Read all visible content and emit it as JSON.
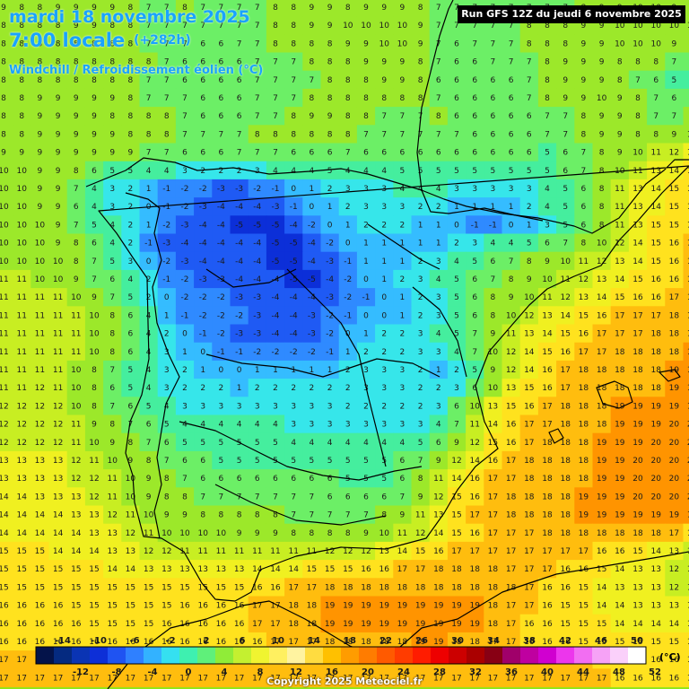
{
  "header": {
    "date_title": "mardi 18 novembre 2025",
    "time_title": "7:00 locale",
    "offset": "(+282h)",
    "parameter": "Windchill / Refroidissement éolien (°C)",
    "run_info": "Run GFS 12Z du jeudi 6 novembre 2025"
  },
  "legend": {
    "unit": "(°C)",
    "top_labels": [
      "-14",
      "-10",
      "-6",
      "-2",
      "2",
      "6",
      "10",
      "14",
      "18",
      "22",
      "26",
      "30",
      "34",
      "38",
      "42",
      "46",
      "50"
    ],
    "bottom_labels": [
      "-12",
      "-8",
      "-4",
      "0",
      "4",
      "8",
      "12",
      "16",
      "20",
      "24",
      "28",
      "32",
      "36",
      "40",
      "44",
      "48",
      "52"
    ],
    "colors": [
      "#04134a",
      "#052a80",
      "#0a34b4",
      "#0d2fd7",
      "#1f53f2",
      "#2f80ff",
      "#33b2ff",
      "#35e0f0",
      "#3ef0b0",
      "#5ff07a",
      "#90ec38",
      "#c4f030",
      "#f0f430",
      "#fff060",
      "#fff3a0",
      "#ffdc40",
      "#ffc000",
      "#ff9c00",
      "#ff7c00",
      "#ff5a00",
      "#ff3c00",
      "#ff1c00",
      "#ee0000",
      "#cc0000",
      "#aa0000",
      "#880014",
      "#a0006a",
      "#bf00a0",
      "#d000d0",
      "#ec36ec",
      "#f26ef2",
      "#f6a2f6",
      "#fad0fa",
      "#ffffff"
    ]
  },
  "map_data": {
    "color_stops": [
      {
        "v": -6,
        "c": "#0c2fd8"
      },
      {
        "v": -4,
        "c": "#1f5af4"
      },
      {
        "v": -2,
        "c": "#2f8aff"
      },
      {
        "v": 0,
        "c": "#35bcff"
      },
      {
        "v": 2,
        "c": "#36e6ea"
      },
      {
        "v": 4,
        "c": "#45ee9e"
      },
      {
        "v": 6,
        "c": "#6cef66"
      },
      {
        "v": 8,
        "c": "#9ce82a"
      },
      {
        "v": 11,
        "c": "#c8ee22"
      },
      {
        "v": 13,
        "c": "#f0f020"
      },
      {
        "v": 15,
        "c": "#ffe21e"
      },
      {
        "v": 17,
        "c": "#ffbd0e"
      },
      {
        "v": 19,
        "c": "#ff9400"
      },
      {
        "v": 21,
        "c": "#ff7a00"
      }
    ],
    "rows": [
      "9 8 8 9 9 9 9 8 7 7 8 7 7 7 7 8 8 9 9 8 9 9 9 8 7 7 7 7 7 7 7 7 8 9 9 10 10 9 9",
      "8 8 8 8 9 9 8 8 7 7 7 7 7 7 7 8 8 9 9 10 10 10 10 9 7 7 7 7 7 8 8 8 9 9 10 10 10 10 10",
      "8 8 8 8 8 8 8 8 7 7 7 6 6 7 7 8 8 8 8 9 9 10 10 9 7 6 7 7 7 8 8 8 9 9 10 10 10 9 9",
      "8 8 8 8 8 8 8 8 8 7 6 6 6 6 7 7 7 8 8 8 9 9 9 8 7 6 6 7 7 7 8 9 9 9 8 8 8 7 6",
      "8 8 8 8 8 8 8 8 7 7 6 6 6 6 7 7 7 7 8 8 8 9 9 8 6 6 6 6 6 7 8 9 9 9 8 7 6 5 5",
      "8 8 9 9 9 9 9 8 7 7 7 6 6 6 7 7 7 8 8 8 8 8 8 8 7 6 6 6 6 7 8 9 9 10 9 8 7 6 6",
      "8 8 9 9 9 9 8 8 8 8 7 6 6 6 7 7 8 9 9 8 8 7 7 7 8 6 6 6 6 6 7 7 8 9 9 8 7 7 8",
      "8 8 9 9 9 9 9 8 8 8 7 7 7 7 8 8 8 8 8 8 7 7 7 7 7 7 6 6 6 6 7 7 8 9 9 8 8 9 10",
      "9 9 9 9 9 9 9 9 7 7 6 6 6 7 7 7 6 6 6 7 6 6 6 6 6 6 6 6 6 6 5 6 7 8 9 10 11 12 13",
      "10 10 9 9 8 6 5 5 4 4 3 2 2 2 3 4 4 4 5 4 4 4 5 5 5 5 5 5 5 5 5 6 7 8 10 11 13 14 15",
      "10 10 9 9 7 4 3 2 1 -1 -2 -2 -3 -3 -2 -1 0 1 2 3 3 3 4 4 4 3 3 3 3 3 4 5 6 8 11 13 14 15 16",
      "10 10 9 9 6 4 3 2 0 -1 -2 -3 -4 -4 -4 -3 -1 0 1 2 3 3 3 2 2 1 1 1 1 2 4 5 6 8 11 13 14 15 16",
      "10 10 10 9 7 5 4 2 1 -2 -3 -4 -4 -5 -5 -5 -4 -2 0 1 2 2 2 1 1 0 -1 -1 0 1 3 5 6 8 11 13 15 15 16",
      "10 10 10 9 8 6 4 2 -1 -3 -4 -4 -4 -4 -4 -5 -5 -4 -2 0 1 1 1 1 1 2 3 4 4 5 6 7 8 10 12 14 15 16 17",
      "10 10 10 10 8 7 5 3 0 -2 -3 -4 -4 -4 -4 -5 -5 -4 -3 -1 1 1 1 2 3 4 5 6 7 8 9 10 11 12 13 14 15 16 17",
      "11 11 10 10 9 7 6 4 2 -1 -2 -3 -3 -4 -4 -4 -5 -5 -4 -2 0 1 2 3 4 5 6 7 8 9 10 11 12 13 14 15 16 16 17",
      "11 11 11 11 10 9 7 5 2 0 -2 -2 -2 -3 -3 -4 -4 -4 -3 -2 -1 0 1 2 3 5 6 8 9 10 11 12 13 14 15 16 16 17 17",
      "11 11 11 11 11 10 8 6 4 1 -1 -2 -2 -2 -3 -4 -4 -3 -2 -1 0 0 1 2 3 5 6 8 10 12 13 14 15 16 17 17 17 18 18",
      "11 11 11 11 11 10 8 6 4 2 0 -1 -2 -3 -3 -4 -4 -3 -2 0 1 2 2 3 4 5 7 9 11 13 14 15 16 17 17 17 18 18 18",
      "11 11 11 11 11 10 8 6 4 3 1 0 -1 -1 -2 -2 -2 -2 -1 1 2 2 2 3 3 4 7 10 12 14 15 16 17 17 18 18 18 18 19",
      "11 11 11 11 10 8 7 5 4 3 2 1 0 0 1 1 1 1 1 2 3 3 3 2 1 2 5 9 12 14 16 17 18 18 18 18 18 19 19",
      "11 11 12 11 10 8 6 5 4 3 2 2 2 1 2 2 2 2 2 2 3 3 3 2 2 3 6 10 13 15 16 17 18 18 18 18 18 19 19",
      "12 12 12 12 10 8 7 6 5 4 3 3 3 3 3 3 3 3 3 2 2 2 2 2 3 6 10 13 15 16 17 18 18 18 19 19 19 19 19",
      "12 12 12 12 11 9 8 7 6 5 4 4 4 4 4 4 3 3 3 3 3 3 3 3 4 7 11 14 16 17 17 18 18 18 19 19 19 20 20",
      "12 12 12 12 11 10 9 8 7 6 5 5 5 5 5 5 4 4 4 4 4 4 4 5 6 9 12 15 16 17 18 18 18 19 19 19 20 20 20",
      "13 13 13 13 12 11 10 9 8 7 6 6 5 5 5 5 5 5 5 5 5 5 6 7 9 12 14 16 17 18 18 18 18 19 19 20 20 20 20",
      "13 13 13 13 12 12 11 10 9 8 7 6 6 6 6 6 6 6 6 5 5 5 6 8 11 14 16 17 17 18 18 18 18 19 19 20 20 20 20",
      "14 14 13 13 13 12 11 10 9 8 8 7 7 7 7 7 7 7 6 6 6 6 7 9 12 15 16 17 18 18 18 18 19 19 19 20 20 20 20",
      "14 14 14 14 13 13 12 11 10 9 9 8 8 8 8 8 7 7 7 7 7 8 9 11 13 15 17 17 18 18 18 18 19 19 19 19 19 19 19",
      "14 14 14 14 14 13 13 12 11 10 10 10 10 9 9 9 8 8 8 8 9 10 11 12 14 15 16 17 17 17 18 18 18 18 18 18 18 17 16",
      "15 15 15 14 14 14 13 13 12 12 11 11 11 11 11 11 11 11 12 12 12 13 14 15 16 17 17 17 17 17 17 17 17 16 16 15 14 13 12",
      "15 15 15 15 15 15 14 14 13 13 13 13 13 13 14 14 14 15 15 15 16 16 17 17 18 18 18 18 17 17 17 16 16 15 14 13 13 12 12",
      "15 15 15 15 15 15 15 15 15 15 15 15 15 15 16 16 17 17 18 18 18 18 18 18 18 18 18 18 18 17 16 16 15 14 13 13 13 12 12",
      "16 16 16 16 15 15 15 15 15 15 16 16 16 16 17 17 18 18 19 19 19 19 19 19 19 19 19 18 17 17 16 15 15 14 14 13 13 13 13",
      "16 16 16 16 16 15 15 15 15 16 16 16 16 16 17 17 18 18 19 19 19 19 19 19 19 19 19 18 17 16 16 15 15 15 14 14 14 14 14",
      "16 16 16 16 16 16 16 16 16 16 16 16 16 16 16 17 17 17 18 18 18 18 18 19 19 18 18 17 17 16 16 16 15 15 15 15 15 15 15",
      "17 17 17 17 17 17 17 17 17 17 17 17 17 17 17 17 17 17 17 17 17 17 17 17 17 17 17 17 17 17 17 17 17 16 16 16 16 16 16",
      "17 17 17 17 17 17 17 17 17 17 17 17 17 17 17 17 17 17 17 17 17 17 17 17 17 17 17 17 17 17 17 17 17 17 16 16 16 16 16"
    ]
  }
}
